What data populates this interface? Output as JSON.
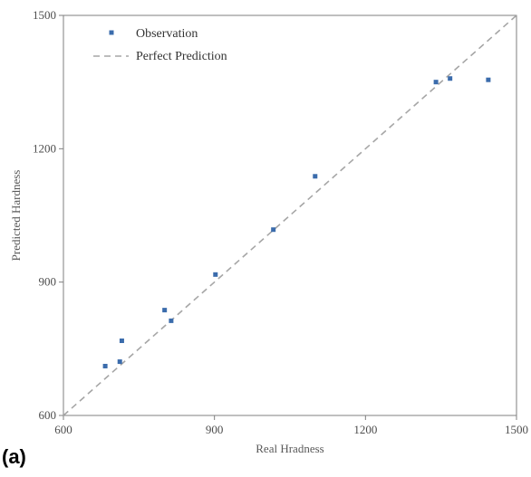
{
  "chart_data": {
    "type": "scatter",
    "panel_label": "(a)",
    "xlabel": "Real Hradness",
    "ylabel": "Predicted Hardness",
    "xlim": [
      600,
      1500
    ],
    "ylim": [
      600,
      1500
    ],
    "x_ticks": [
      600,
      900,
      1200,
      1500
    ],
    "y_ticks": [
      600,
      900,
      1200,
      1500
    ],
    "grid": false,
    "legend_position": "top-left",
    "series": [
      {
        "name": "Observation",
        "color": "#3b6cac",
        "marker": "square",
        "points": [
          {
            "x": 683,
            "y": 711
          },
          {
            "x": 712,
            "y": 721
          },
          {
            "x": 716,
            "y": 768
          },
          {
            "x": 801,
            "y": 837
          },
          {
            "x": 814,
            "y": 813
          },
          {
            "x": 902,
            "y": 917
          },
          {
            "x": 1017,
            "y": 1018
          },
          {
            "x": 1100,
            "y": 1138
          },
          {
            "x": 1340,
            "y": 1350
          },
          {
            "x": 1368,
            "y": 1358
          },
          {
            "x": 1444,
            "y": 1355
          }
        ]
      },
      {
        "name": "Perfect Prediction",
        "color": "#a6a6a6",
        "style": "dashed",
        "points": [
          {
            "x": 600,
            "y": 600
          },
          {
            "x": 1500,
            "y": 1500
          }
        ]
      }
    ]
  }
}
